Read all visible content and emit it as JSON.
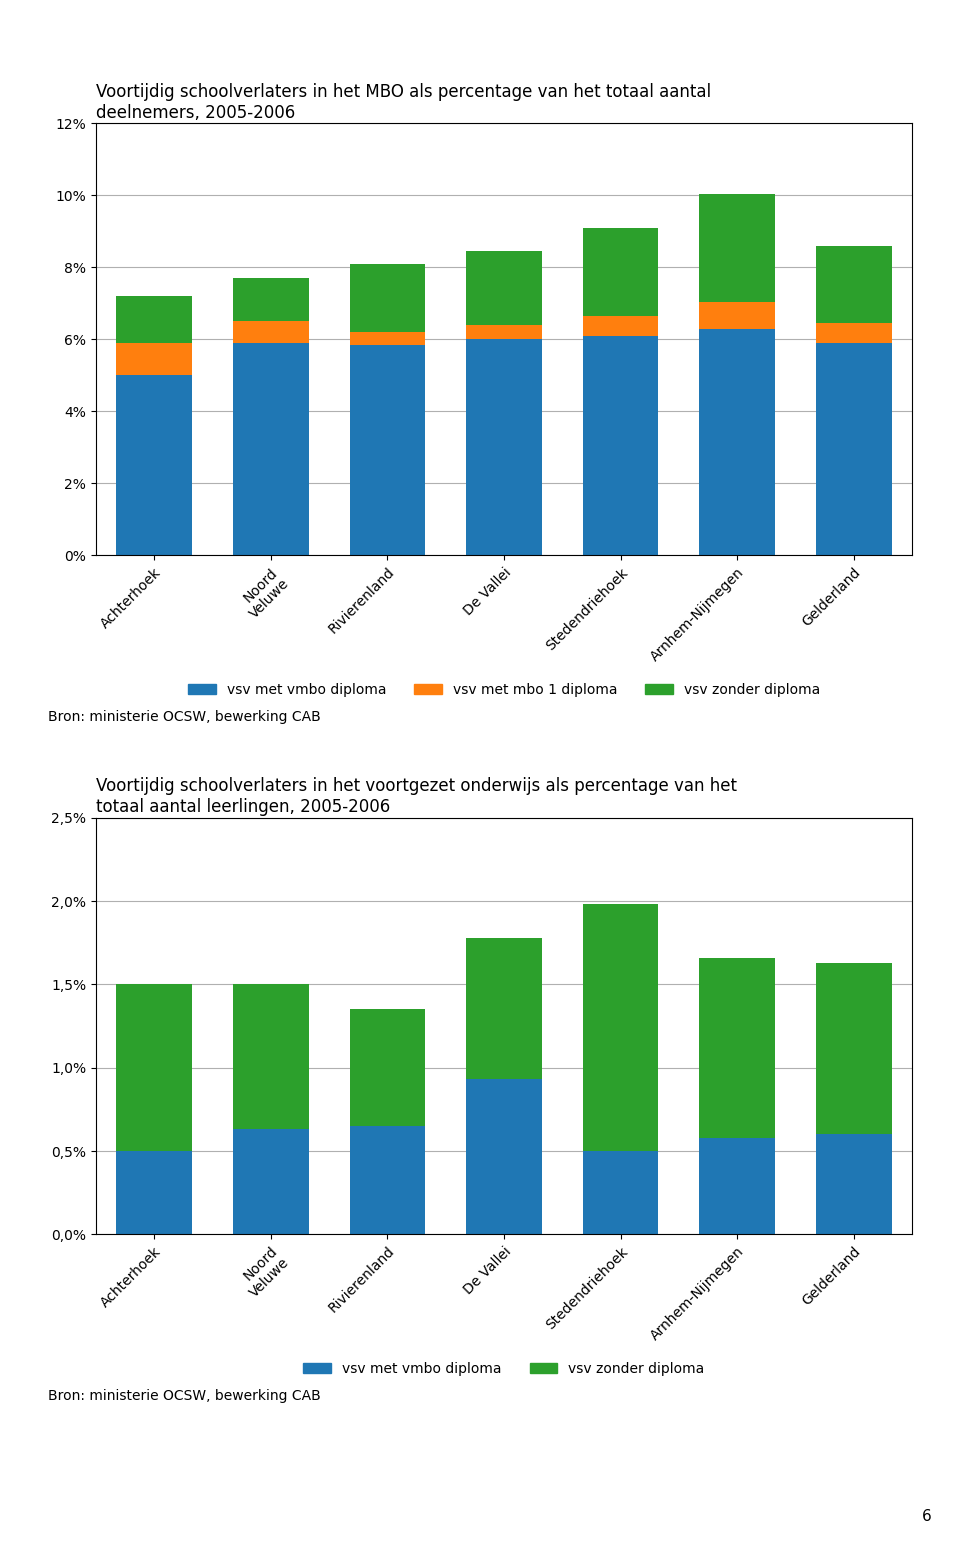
{
  "chart_data": [
    {
      "type": "bar",
      "stacked": true,
      "grid": true,
      "legend": "upper center",
      "title": "Voortijdig schoolverlaters in het MBO als percentage van het totaal aantal\ndeelnemers, 2005-2006",
      "categories": [
        "Achterhoek",
        "Noord\nVeluwe",
        "Rivierenland",
        "De Vallei",
        "Stedendriehoek",
        "Arnhem-Nijmegen",
        "Gelderland"
      ],
      "series": [
        {
          "name": "vsv met vmbo diploma",
          "values": [
            5.0,
            5.9,
            5.85,
            6.0,
            6.1,
            6.3,
            5.9
          ]
        },
        {
          "name": "vsv met mbo 1 diploma",
          "values": [
            0.9,
            0.6,
            0.35,
            0.4,
            0.55,
            0.75,
            0.55
          ]
        },
        {
          "name": "vsv zonder diploma",
          "values": [
            1.3,
            1.2,
            1.9,
            2.05,
            2.45,
            3.0,
            2.15
          ]
        }
      ],
      "ylim": [
        0,
        12
      ],
      "yticks": [
        {
          "value": 0,
          "label": "0%"
        },
        {
          "value": 2,
          "label": "2%"
        },
        {
          "value": 4,
          "label": "4%"
        },
        {
          "value": 6,
          "label": "6%"
        },
        {
          "value": 8,
          "label": "8%"
        },
        {
          "value": 10,
          "label": "10%"
        },
        {
          "value": 12,
          "label": "12%"
        }
      ],
      "annotations": [
        "Bron: ministerie OCSW, bewerking CAB"
      ]
    },
    {
      "type": "bar",
      "stacked": true,
      "grid": true,
      "legend": "upper center",
      "title": "Voortijdig schoolverlaters in het voortgezet onderwijs als percentage van het\ntotaal aantal leerlingen, 2005-2006",
      "categories": [
        "Achterhoek",
        "Noord\nVeluwe",
        "Rivierenland",
        "De Vallei",
        "Stedendriehoek",
        "Arnhem-Nijmegen",
        "Gelderland"
      ],
      "series": [
        {
          "name": "vsv met vmbo diploma",
          "values": [
            0.5,
            0.63,
            0.65,
            0.93,
            0.5,
            0.58,
            0.6
          ]
        },
        {
          "name": "vsv zonder diploma",
          "values": [
            1.0,
            0.87,
            0.7,
            0.85,
            1.48,
            1.08,
            1.03
          ]
        }
      ],
      "ylim": [
        0,
        2.5
      ],
      "yticks": [
        {
          "value": 0,
          "label": "0,0%"
        },
        {
          "value": 0.5,
          "label": "0,5%"
        },
        {
          "value": 1.0,
          "label": "1,0%"
        },
        {
          "value": 1.5,
          "label": "1,5%"
        },
        {
          "value": 2.0,
          "label": "2,0%"
        },
        {
          "value": 2.5,
          "label": "2,5%"
        }
      ],
      "annotations": [
        "Bron: ministerie OCSW, bewerking CAB",
        "6"
      ]
    }
  ]
}
